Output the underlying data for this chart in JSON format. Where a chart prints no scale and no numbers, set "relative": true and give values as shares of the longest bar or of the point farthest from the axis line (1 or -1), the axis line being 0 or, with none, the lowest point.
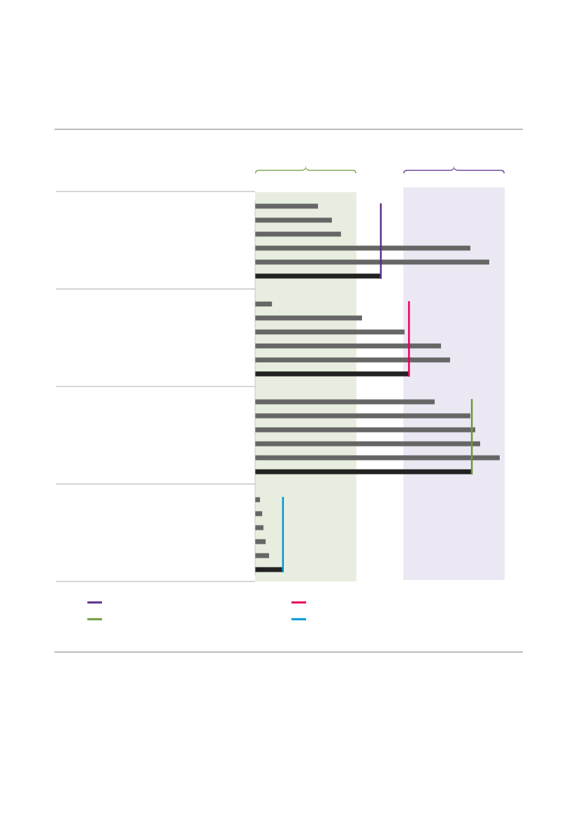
{
  "chart_data": {
    "type": "bar",
    "orientation": "horizontal",
    "relative": true,
    "categories": [
      null,
      null,
      null,
      null,
      null,
      null,
      null,
      null,
      null,
      null,
      null,
      null,
      null,
      null,
      null,
      null,
      null,
      null,
      null,
      null,
      null,
      null,
      null,
      null
    ],
    "values": [
      0.257,
      0.314,
      0.351,
      0.88,
      0.957,
      0.511,
      0.069,
      0.437,
      0.611,
      0.76,
      0.797,
      0.626,
      0.734,
      0.88,
      0.9,
      0.92,
      1,
      0.883,
      0.02,
      0.029,
      0.034,
      0.043,
      0.057,
      0.111
    ],
    "colors": [
      "#666666",
      "#666666",
      "#666666",
      "#666666",
      "#666666",
      "#222222",
      "#666666",
      "#666666",
      "#666666",
      "#666666",
      "#666666",
      "#222222",
      "#666666",
      "#666666",
      "#666666",
      "#666666",
      "#666666",
      "#222222",
      "#666666",
      "#666666",
      "#666666",
      "#666666",
      "#666666",
      "#222222"
    ],
    "ref_lines": [
      {
        "axis": "x",
        "value": 0.514,
        "color": "#5b2d8e"
      },
      {
        "axis": "x",
        "value": 0.629,
        "color": "#e6005c"
      },
      {
        "axis": "x",
        "value": 0.886,
        "color": "#6a9a3a"
      },
      {
        "axis": "x",
        "value": 0.114,
        "color": "#0096d6"
      }
    ],
    "bands": [
      {
        "axis": "x",
        "from": 0,
        "to": 0.414,
        "color": "#e8eedf"
      },
      {
        "axis": "x",
        "from": 0.606,
        "to": 1.02,
        "color": "#ebe8f3"
      }
    ]
  }
}
